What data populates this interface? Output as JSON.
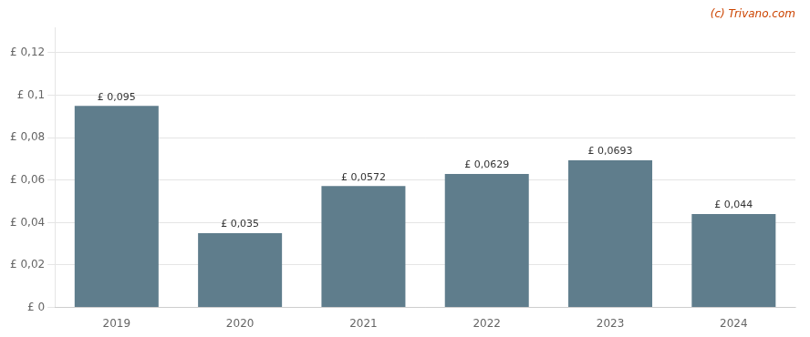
{
  "chart_data": {
    "type": "bar",
    "categories": [
      "2019",
      "2020",
      "2021",
      "2022",
      "2023",
      "2024"
    ],
    "values": [
      0.095,
      0.035,
      0.0572,
      0.0629,
      0.0693,
      0.044
    ],
    "value_labels": [
      "£ 0,095",
      "£ 0,035",
      "£ 0,0572",
      "£ 0,0629",
      "£ 0,0693",
      "£ 0,044"
    ],
    "data_labels": true,
    "color": "#5f7d8c",
    "ylim": [
      0,
      0.132
    ],
    "yticks": [
      {
        "value": 0,
        "label": "£ 0"
      },
      {
        "value": 0.02,
        "label": "£ 0,02"
      },
      {
        "value": 0.04,
        "label": "£ 0,04"
      },
      {
        "value": 0.06,
        "label": "£ 0,06"
      },
      {
        "value": 0.08,
        "label": "£ 0,08"
      },
      {
        "value": 0.1,
        "label": "£ 0,1"
      },
      {
        "value": 0.12,
        "label": "£ 0,12"
      }
    ],
    "grid": true,
    "annotations": [
      {
        "text": "(c) Trivano.com",
        "color": "#cc4400"
      }
    ]
  }
}
